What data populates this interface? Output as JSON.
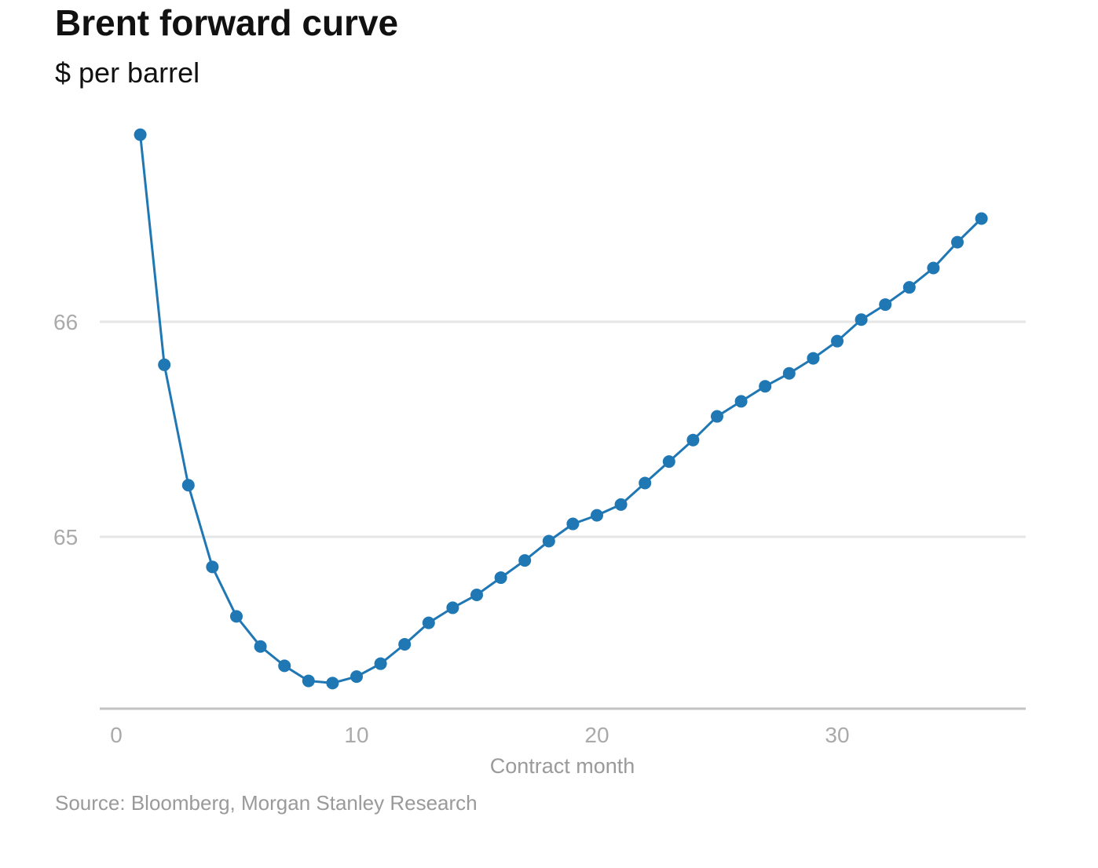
{
  "chart_data": {
    "type": "line",
    "title": "Brent forward curve",
    "subtitle": "$ per barrel",
    "xlabel": "Contract month",
    "ylabel": "",
    "source": "Source: Bloomberg, Morgan Stanley Research",
    "xlim": [
      0,
      38
    ],
    "ylim": [
      64.2,
      67.1
    ],
    "x_ticks": [
      0,
      10,
      20,
      30
    ],
    "y_ticks": [
      65,
      66
    ],
    "grid": "horizontal",
    "legend": "none",
    "color": "#1f77b4",
    "series": [
      {
        "x": [
          1,
          2,
          3,
          4,
          5,
          6,
          7,
          8,
          9,
          10,
          11,
          12,
          13,
          14,
          15,
          16,
          17,
          18,
          19,
          20,
          21,
          22,
          23,
          24,
          25,
          26,
          27,
          28,
          29,
          30,
          31,
          32,
          33,
          34,
          35,
          36
        ],
        "values": [
          66.87,
          65.8,
          65.24,
          64.86,
          64.63,
          64.49,
          64.4,
          64.33,
          64.32,
          64.35,
          64.41,
          64.5,
          64.6,
          64.67,
          64.73,
          64.81,
          64.89,
          64.98,
          65.06,
          65.1,
          65.15,
          65.25,
          65.35,
          65.45,
          65.56,
          65.63,
          65.7,
          65.76,
          65.83,
          65.91,
          66.01,
          66.08,
          66.16,
          66.25,
          66.37,
          66.48
        ]
      }
    ]
  }
}
